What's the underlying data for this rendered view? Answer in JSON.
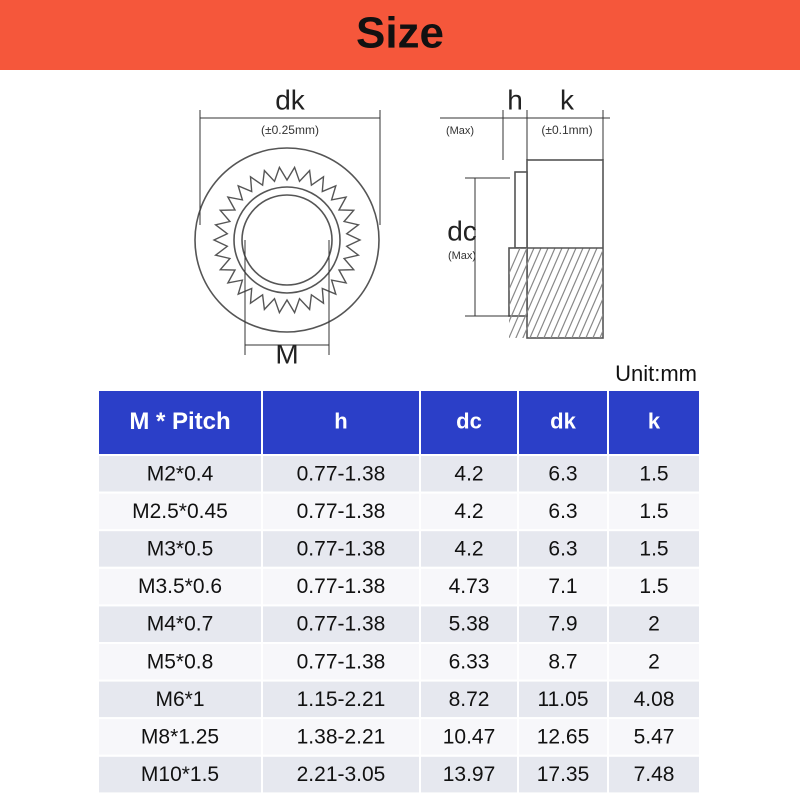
{
  "header": {
    "title": "Size"
  },
  "diagram": {
    "front": {
      "dk_label": "dk",
      "dk_tolerance": "(±0.25mm)",
      "m_label": "M"
    },
    "side": {
      "h_label": "h",
      "h_note": "(Max)",
      "k_label": "k",
      "k_tolerance": "(±0.1mm)",
      "dc_label": "dc",
      "dc_note": "(Max)"
    }
  },
  "unit": "Unit:mm",
  "table": {
    "headers": [
      "M * Pitch",
      "h",
      "dc",
      "dk",
      "k"
    ],
    "rows": [
      [
        "M2*0.4",
        "0.77-1.38",
        "4.2",
        "6.3",
        "1.5"
      ],
      [
        "M2.5*0.45",
        "0.77-1.38",
        "4.2",
        "6.3",
        "1.5"
      ],
      [
        "M3*0.5",
        "0.77-1.38",
        "4.2",
        "6.3",
        "1.5"
      ],
      [
        "M3.5*0.6",
        "0.77-1.38",
        "4.73",
        "7.1",
        "1.5"
      ],
      [
        "M4*0.7",
        "0.77-1.38",
        "5.38",
        "7.9",
        "2"
      ],
      [
        "M5*0.8",
        "0.77-1.38",
        "6.33",
        "8.7",
        "2"
      ],
      [
        "M6*1",
        "1.15-2.21",
        "8.72",
        "11.05",
        "4.08"
      ],
      [
        "M8*1.25",
        "1.38-2.21",
        "10.47",
        "12.65",
        "5.47"
      ],
      [
        "M10*1.5",
        "2.21-3.05",
        "13.97",
        "17.35",
        "7.48"
      ]
    ]
  }
}
